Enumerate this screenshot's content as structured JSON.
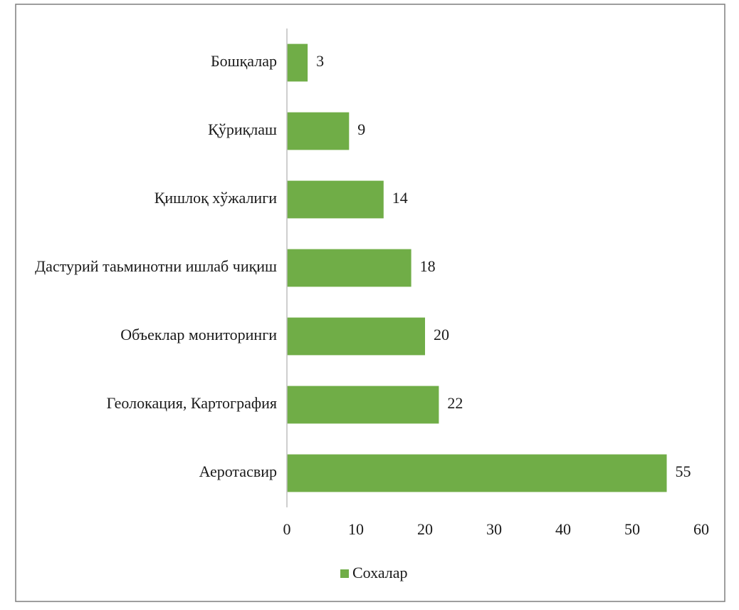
{
  "chart_data": {
    "type": "bar",
    "orientation": "horizontal",
    "categories": [
      "Аеротасвир",
      "Геолокация, Картография",
      "Объеклар мониторинги",
      "Дастурий  таьминотни ишлаб чиқиш",
      "Қишлоқ хўжалиги",
      "Қўриқлаш",
      "Бошқалар"
    ],
    "series": [
      {
        "name": "Сохалар",
        "color": "#70ad47",
        "values": [
          55,
          22,
          20,
          18,
          14,
          9,
          3
        ]
      }
    ],
    "xlim": [
      0,
      60
    ],
    "xticks": [
      0,
      10,
      20,
      30,
      40,
      50,
      60
    ],
    "title": "",
    "xlabel": "",
    "ylabel": "",
    "grid": false,
    "data_labels": true,
    "legend": {
      "position": "bottom"
    },
    "colors": {
      "bar": "#70ad47",
      "axis": "#bfbfbf",
      "border": "#7f7f7f",
      "text": "#1a1a1a"
    }
  }
}
